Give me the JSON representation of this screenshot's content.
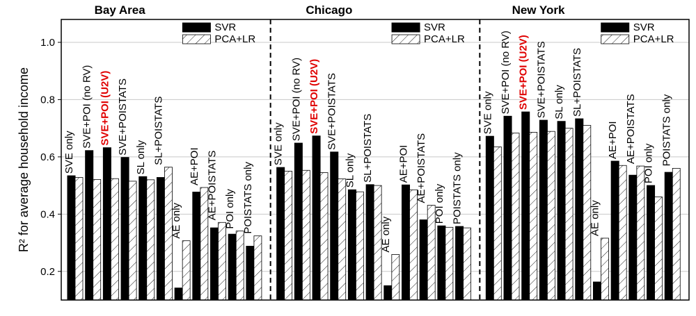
{
  "chart_data": {
    "type": "bar",
    "ylabel": "R² for average household income",
    "ylim": [
      0.1,
      1.08
    ],
    "yticks": [
      0.2,
      0.4,
      0.6,
      0.8,
      1.0
    ],
    "ytick_labels": [
      "0.2",
      "0.4",
      "0.6",
      "0.8",
      "1.0"
    ],
    "grid": true,
    "legend_position": "top-right of each panel",
    "series_names": [
      "SVR",
      "PCA+LR"
    ],
    "highlight_color": "#e00000",
    "panels": [
      {
        "title": "Bay Area",
        "categories": [
          "SVE only",
          "SVE+POI (no RV)",
          "SVE+POI (U2V)",
          "SVE+POISTATS",
          "SL only",
          "SL+POISTATS",
          "AE only",
          "AE+POI",
          "AE+POISTATS",
          "POI only",
          "POISTATS only"
        ],
        "highlight": [
          false,
          false,
          true,
          false,
          false,
          false,
          false,
          false,
          false,
          false,
          false
        ],
        "series": [
          {
            "name": "SVR",
            "values": [
              0.534,
              0.622,
              0.632,
              0.598,
              0.531,
              0.528,
              0.142,
              0.477,
              0.352,
              0.33,
              0.288
            ]
          },
          {
            "name": "PCA+LR",
            "values": [
              0.528,
              0.521,
              0.524,
              0.515,
              0.52,
              0.564,
              0.307,
              0.493,
              0.371,
              0.341,
              0.324
            ]
          }
        ]
      },
      {
        "title": "Chicago",
        "categories": [
          "SVE only",
          "SVE+POI (no RV)",
          "SVE+POI (U2V)",
          "SVE+POISTATS",
          "SL only",
          "SL+POISTATS",
          "AE only",
          "AE+POI",
          "AE+POISTATS",
          "POI only",
          "POISTATS only"
        ],
        "highlight": [
          false,
          false,
          true,
          false,
          false,
          false,
          false,
          false,
          false,
          false,
          false
        ],
        "series": [
          {
            "name": "SVR",
            "values": [
              0.563,
              0.648,
              0.673,
              0.617,
              0.485,
              0.503,
              0.15,
              0.502,
              0.38,
              0.359,
              0.357
            ]
          },
          {
            "name": "PCA+LR",
            "values": [
              0.55,
              0.553,
              0.545,
              0.523,
              0.478,
              0.5,
              0.259,
              0.485,
              0.431,
              0.354,
              0.352
            ]
          }
        ]
      },
      {
        "title": "New York",
        "categories": [
          "SVE only",
          "SVE+POI (no RV)",
          "SVE+POI (U2V)",
          "SVE+POISTATS",
          "SL only",
          "SL+POISTATS",
          "AE only",
          "AE+POI",
          "AE+POISTATS",
          "POI only",
          "POISTATS only"
        ],
        "highlight": [
          false,
          false,
          true,
          false,
          false,
          false,
          false,
          false,
          false,
          false,
          false
        ],
        "series": [
          {
            "name": "SVR",
            "values": [
              0.672,
              0.742,
              0.757,
              0.728,
              0.724,
              0.733,
              0.163,
              0.585,
              0.536,
              0.5,
              0.546
            ]
          },
          {
            "name": "PCA+LR",
            "values": [
              0.635,
              0.683,
              0.686,
              0.689,
              0.7,
              0.71,
              0.316,
              0.57,
              0.568,
              0.46,
              0.56
            ]
          }
        ]
      }
    ]
  }
}
